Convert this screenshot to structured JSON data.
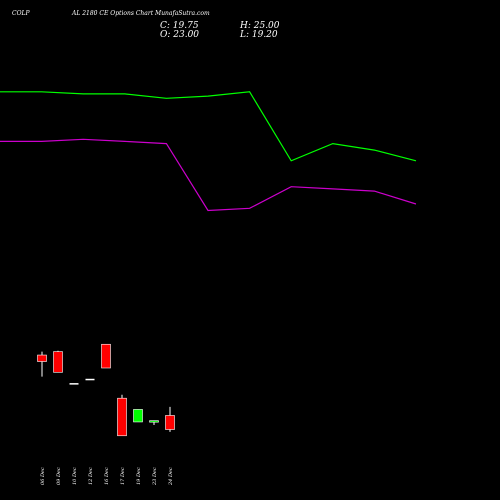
{
  "header": {
    "symbol": "COLP",
    "title": "AL 2180  CE Options  Chart  MunafaSutra.com",
    "close_label": "C: 19.75",
    "open_label": "O: 23.00",
    "high_label": "H: 25.00",
    "low_label": "L: 19.20"
  },
  "colors": {
    "background": "#000000",
    "up": "#00ff00",
    "down": "#ff0000",
    "neutral": "#ffffff",
    "band_upper": "#00ff00",
    "band_lower": "#cc00cc"
  },
  "chart_data": {
    "type": "candlestick",
    "categories": [
      "06 Dec",
      "09 Dec",
      "10 Dec",
      "12 Dec",
      "16 Dec",
      "17 Dec",
      "19 Dec",
      "23 Dec",
      "24 Dec"
    ],
    "candles": [
      {
        "date": "06 Dec",
        "open": 37.0,
        "high": 37.8,
        "low": 32.0,
        "close": 35.5,
        "dir": "down"
      },
      {
        "date": "09 Dec",
        "open": 37.8,
        "high": 38.0,
        "low": 33.0,
        "close": 33.0,
        "dir": "down"
      },
      {
        "date": "10 Dec",
        "open": 30.5,
        "high": 30.5,
        "low": 30.5,
        "close": 30.5,
        "dir": "flat"
      },
      {
        "date": "12 Dec",
        "open": 31.5,
        "high": 31.5,
        "low": 31.5,
        "close": 31.5,
        "dir": "flat"
      },
      {
        "date": "16 Dec",
        "open": 39.5,
        "high": 39.5,
        "low": 34.0,
        "close": 34.0,
        "dir": "down"
      },
      {
        "date": "17 Dec",
        "open": 27.0,
        "high": 27.8,
        "low": 18.3,
        "close": 18.3,
        "dir": "down"
      },
      {
        "date": "19 Dec",
        "open": 21.5,
        "high": 24.4,
        "low": 21.5,
        "close": 24.4,
        "dir": "up"
      },
      {
        "date": "23 Dec",
        "open": 21.8,
        "high": 21.8,
        "low": 20.8,
        "close": 21.8,
        "dir": "up"
      },
      {
        "date": "24 Dec",
        "open": 23.0,
        "high": 25.0,
        "low": 19.2,
        "close": 19.75,
        "dir": "down"
      }
    ],
    "bands": {
      "upper": [
        98,
        98,
        97.5,
        97.5,
        96.5,
        97,
        98,
        82,
        86,
        84.5,
        82
      ],
      "lower": [
        86.5,
        86.5,
        87,
        86.5,
        86,
        70.5,
        71,
        76,
        75.5,
        75,
        72
      ]
    },
    "ylim": [
      15,
      110
    ]
  }
}
